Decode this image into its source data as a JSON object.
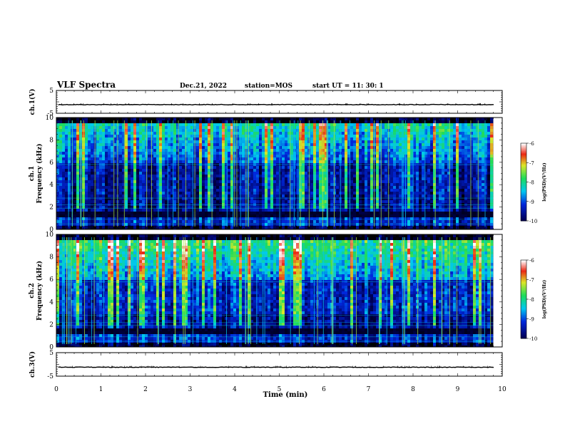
{
  "header": {
    "title": "VLF Spectra",
    "date": "Dec.21, 2022",
    "station": "station=MOS",
    "start": "start  UT =   11: 30: 1"
  },
  "chart_data": [
    {
      "type": "line",
      "name": "ch1-voltage",
      "ylabel": "ch.1(V)",
      "ylim": [
        -5,
        5
      ],
      "yticks": [
        "5",
        "-5"
      ],
      "xlim": [
        0,
        10
      ],
      "note_baseline": -1.2
    },
    {
      "type": "heatmap",
      "name": "ch1-spectrogram",
      "ylabel_1": "ch.1",
      "ylabel_2": "Frequency (kHz)",
      "ylim": [
        0,
        10
      ],
      "yticks": [
        "0",
        "2",
        "4",
        "6",
        "8",
        "10"
      ],
      "xlim": [
        0,
        9.8
      ],
      "color_range": [
        -10,
        -6
      ],
      "colorbar_ticks": [
        "-6",
        "-7",
        "-8",
        "-9",
        "-10"
      ],
      "colorbar_label": "log(PSD)(V²/Hz)"
    },
    {
      "type": "heatmap",
      "name": "ch2-spectrogram",
      "ylabel_1": "ch.2",
      "ylabel_2": "Frequency (kHz)",
      "ylim": [
        0,
        10
      ],
      "yticks": [
        "0",
        "2",
        "4",
        "6",
        "8",
        "10"
      ],
      "xlim": [
        0,
        9.8
      ],
      "color_range": [
        -10,
        -6
      ],
      "colorbar_ticks": [
        "-6",
        "-7",
        "-8",
        "-9",
        "-10"
      ],
      "colorbar_label": "log(PSD)(V²/Hz)"
    },
    {
      "type": "line",
      "name": "ch3-voltage",
      "ylabel": "ch.3(V)",
      "ylim": [
        -5,
        5
      ],
      "yticks": [
        "5",
        "-5"
      ],
      "xlim": [
        0,
        10
      ],
      "note_baseline": -1.2
    }
  ],
  "xaxis": {
    "label": "Time  (min)",
    "ticks": [
      "0",
      "1",
      "2",
      "3",
      "4",
      "5",
      "6",
      "7",
      "8",
      "9",
      "10"
    ]
  }
}
